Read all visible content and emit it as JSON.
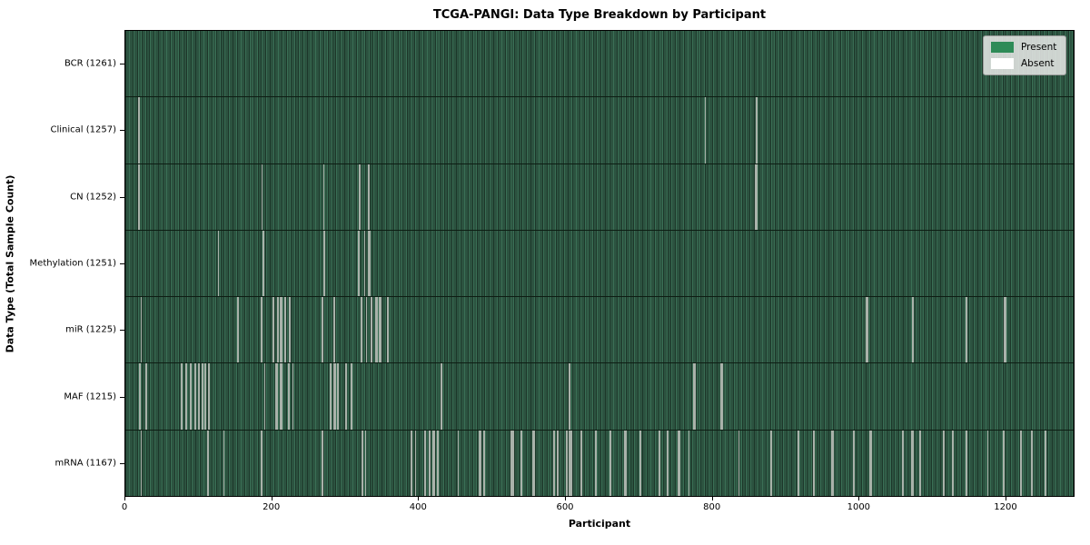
{
  "chart_data": {
    "type": "heatmap",
    "title": "TCGA-PANGI: Data Type Breakdown by Participant",
    "xlabel": "Participant",
    "ylabel": "Data Type (Total Sample Count)",
    "x_ticks": [
      0,
      200,
      400,
      600,
      800,
      1000,
      1200
    ],
    "x_axis_range": [
      0,
      1294
    ],
    "total_participants": 1261,
    "grid": false,
    "legend_position": "upper right",
    "legend": {
      "items": [
        {
          "label": "Present",
          "color": "#2e8b57"
        },
        {
          "label": "Absent",
          "color": "#ffffff"
        }
      ]
    },
    "colors": {
      "present_fill": "#2e8b57",
      "bar_texture_light": "#3a6f55",
      "bar_texture_dark": "#1d372a",
      "absent_stripe": "#a9b2aa",
      "axis_line": "#000000",
      "legend_bg": "#e5e7e5"
    },
    "rows": [
      {
        "data_type": "BCR",
        "label": "BCR (1261)",
        "present_count": 1261,
        "absent_count": 0,
        "absent_indices": []
      },
      {
        "data_type": "Clinical",
        "label": "Clinical (1257)",
        "present_count": 1257,
        "absent_count": 4,
        "absent_indices": [
          17,
          18,
          789,
          859
        ]
      },
      {
        "data_type": "CN",
        "label": "CN (1252)",
        "present_count": 1252,
        "absent_count": 9,
        "absent_indices": [
          17,
          18,
          186,
          270,
          318,
          319,
          331,
          858,
          859
        ]
      },
      {
        "data_type": "Methylation",
        "label": "Methylation (1251)",
        "present_count": 1251,
        "absent_count": 10,
        "absent_indices": [
          126,
          187,
          188,
          270,
          271,
          317,
          318,
          325,
          331,
          332
        ]
      },
      {
        "data_type": "miR",
        "label": "miR (1225)",
        "present_count": 1225,
        "absent_count": 36,
        "absent_indices": [
          21,
          153,
          185,
          201,
          202,
          207,
          208,
          211,
          212,
          217,
          218,
          223,
          224,
          268,
          284,
          321,
          322,
          328,
          334,
          335,
          341,
          342,
          346,
          347,
          356,
          357,
          1009,
          1010,
          1071,
          1072,
          1144,
          1145,
          1196,
          1197,
          1198,
          1199
        ]
      },
      {
        "data_type": "MAF",
        "label": "MAF (1215)",
        "present_count": 1215,
        "absent_count": 46,
        "absent_indices": [
          19,
          28,
          76,
          77,
          82,
          83,
          88,
          89,
          94,
          95,
          99,
          100,
          104,
          105,
          108,
          109,
          113,
          114,
          189,
          204,
          205,
          206,
          207,
          211,
          212,
          222,
          223,
          228,
          278,
          279,
          284,
          285,
          288,
          289,
          300,
          301,
          307,
          308,
          429,
          430,
          604,
          605,
          774,
          775,
          811,
          812
        ]
      },
      {
        "data_type": "mRNA",
        "label": "mRNA (1167)",
        "present_count": 1167,
        "absent_count": 94,
        "absent_indices": [
          21,
          112,
          134,
          185,
          268,
          322,
          323,
          327,
          389,
          390,
          395,
          407,
          408,
          413,
          414,
          419,
          420,
          425,
          426,
          453,
          482,
          483,
          488,
          489,
          525,
          526,
          527,
          528,
          538,
          539,
          555,
          556,
          583,
          584,
          588,
          589,
          600,
          601,
          604,
          605,
          606,
          607,
          620,
          621,
          640,
          641,
          660,
          661,
          680,
          681,
          700,
          701,
          726,
          727,
          738,
          753,
          754,
          767,
          835,
          878,
          879,
          880,
          916,
          917,
          937,
          938,
          961,
          962,
          963,
          991,
          992,
          1013,
          1014,
          1015,
          1016,
          1058,
          1059,
          1070,
          1071,
          1072,
          1082,
          1114,
          1126,
          1127,
          1144,
          1145,
          1174,
          1195,
          1196,
          1219,
          1234,
          1235,
          1252,
          1253
        ]
      }
    ]
  }
}
